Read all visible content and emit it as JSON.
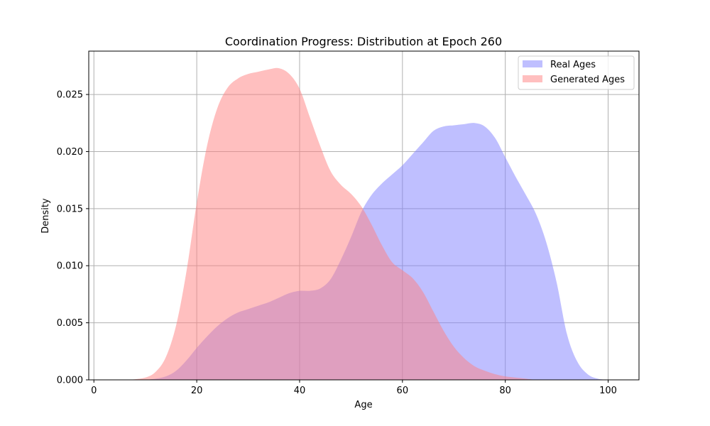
{
  "chart_data": {
    "type": "area",
    "title": "Coordination Progress: Distribution at Epoch 260",
    "xlabel": "Age",
    "ylabel": "Density",
    "xlim": [
      -1,
      106
    ],
    "ylim": [
      0,
      0.0288
    ],
    "xticks": [
      0,
      20,
      40,
      60,
      80,
      100
    ],
    "yticks": [
      0.0,
      0.005,
      0.01,
      0.015,
      0.02,
      0.025
    ],
    "ytick_labels": [
      "0.000",
      "0.005",
      "0.010",
      "0.015",
      "0.020",
      "0.025"
    ],
    "grid": true,
    "legend_position": "top-right",
    "series": [
      {
        "name": "Real Ages",
        "color": "#8080ff",
        "opacity": 0.5,
        "x": [
          10,
          12,
          14,
          16,
          18,
          20,
          22,
          24,
          26,
          28,
          30,
          32,
          34,
          36,
          38,
          40,
          42,
          44,
          46,
          48,
          50,
          52,
          54,
          56,
          58,
          60,
          62,
          64,
          66,
          68,
          70,
          72,
          74,
          76,
          78,
          80,
          82,
          84,
          86,
          88,
          90,
          92,
          94,
          96,
          98,
          100
        ],
        "y": [
          0.0,
          0.0001,
          0.0003,
          0.0008,
          0.0017,
          0.0028,
          0.0038,
          0.0047,
          0.0054,
          0.0059,
          0.0062,
          0.0065,
          0.0068,
          0.0072,
          0.0076,
          0.0078,
          0.0078,
          0.008,
          0.0088,
          0.0105,
          0.0125,
          0.0147,
          0.0162,
          0.0172,
          0.018,
          0.0188,
          0.0198,
          0.0208,
          0.0218,
          0.0222,
          0.0223,
          0.0224,
          0.0225,
          0.0222,
          0.0212,
          0.0195,
          0.0178,
          0.0162,
          0.0145,
          0.012,
          0.0085,
          0.004,
          0.0016,
          0.0005,
          0.0001,
          0.0
        ]
      },
      {
        "name": "Generated Ages",
        "color": "#ff8080",
        "opacity": 0.5,
        "x": [
          7,
          10,
          12,
          14,
          16,
          18,
          20,
          22,
          24,
          26,
          28,
          30,
          32,
          34,
          36,
          38,
          40,
          42,
          44,
          46,
          48,
          50,
          52,
          54,
          56,
          58,
          60,
          62,
          64,
          66,
          68,
          70,
          72,
          74,
          76,
          78,
          80,
          82,
          84,
          86,
          88,
          90
        ],
        "y": [
          0.0,
          0.0002,
          0.0007,
          0.002,
          0.0048,
          0.0095,
          0.0155,
          0.0205,
          0.0238,
          0.0256,
          0.0264,
          0.0268,
          0.027,
          0.0272,
          0.0273,
          0.0268,
          0.0255,
          0.023,
          0.0205,
          0.0183,
          0.0171,
          0.0163,
          0.0152,
          0.0136,
          0.0118,
          0.0103,
          0.0096,
          0.0089,
          0.0077,
          0.006,
          0.0043,
          0.0029,
          0.0019,
          0.0012,
          0.0008,
          0.0005,
          0.0003,
          0.0002,
          0.0001,
          0.0,
          0.0,
          0.0
        ]
      }
    ]
  }
}
